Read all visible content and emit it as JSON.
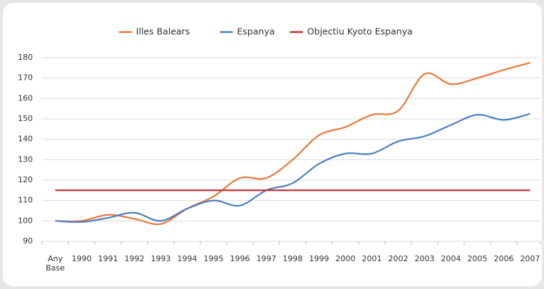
{
  "chart_data": {
    "type": "line",
    "categories": [
      "Any Base",
      "1990",
      "1991",
      "1992",
      "1993",
      "1994",
      "1995",
      "1996",
      "1997",
      "1998",
      "1999",
      "2000",
      "2001",
      "2002",
      "2003",
      "2004",
      "2005",
      "2006",
      "2007"
    ],
    "series": [
      {
        "name": "Illes Balears",
        "color": "#e8793a",
        "values": [
          100,
          100,
          103,
          101,
          98.5,
          106,
          112,
          121,
          121,
          130,
          142,
          146,
          152,
          154,
          172,
          167,
          170,
          174,
          177.5
        ]
      },
      {
        "name": "Espanya",
        "color": "#4a7fc1",
        "values": [
          100,
          99.5,
          101.5,
          104,
          100,
          106,
          110,
          107.5,
          115,
          118.5,
          128,
          133,
          133,
          139,
          141.5,
          147,
          152,
          149.5,
          152.5
        ]
      },
      {
        "name": "Objectiu Kyoto Espanya",
        "color": "#c0282d",
        "values": [
          115,
          115,
          115,
          115,
          115,
          115,
          115,
          115,
          115,
          115,
          115,
          115,
          115,
          115,
          115,
          115,
          115,
          115,
          115
        ]
      }
    ],
    "ylim": [
      90,
      180
    ],
    "yticks": [
      90,
      100,
      110,
      120,
      130,
      140,
      150,
      160,
      170,
      180
    ],
    "grid": true,
    "legend": "top"
  }
}
